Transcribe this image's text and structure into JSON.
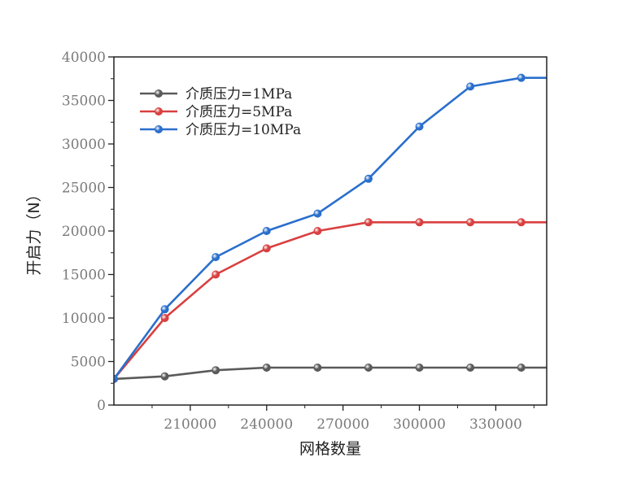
{
  "chart_data": {
    "type": "line",
    "xlabel": "网格数量",
    "ylabel": "开启力（N）",
    "xlim": [
      180000,
      350000
    ],
    "ylim": [
      0,
      40000
    ],
    "x_ticks": [
      210000,
      240000,
      270000,
      300000,
      330000
    ],
    "y_ticks": [
      0,
      5000,
      10000,
      15000,
      20000,
      25000,
      30000,
      35000,
      40000
    ],
    "x": [
      180000,
      200000,
      220000,
      240000,
      260000,
      280000,
      300000,
      320000,
      340000
    ],
    "legend_position": "top-left",
    "grid": false,
    "series": [
      {
        "name": "介质压力=1MPa",
        "color": "#5a5a5a",
        "values": [
          3000,
          3300,
          4000,
          4300,
          4300,
          4300,
          4300,
          4300,
          4300
        ]
      },
      {
        "name": "介质压力=5MPa",
        "color": "#d94040",
        "values": [
          3000,
          10000,
          15000,
          18000,
          20000,
          21000,
          21000,
          21000,
          21000
        ]
      },
      {
        "name": "介质压力=10MPa",
        "color": "#2a6fcc",
        "values": [
          3000,
          11000,
          17000,
          20000,
          22000,
          26000,
          32000,
          36600,
          37600
        ]
      }
    ]
  }
}
